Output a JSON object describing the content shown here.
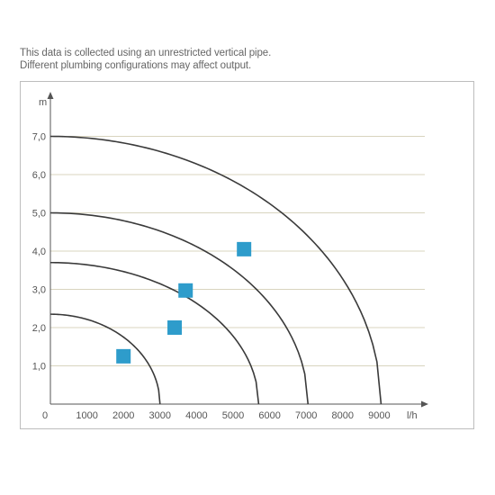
{
  "notes": [
    "This data is collected using an unrestricted vertical pipe.",
    "Different plumbing configurations may affect output."
  ],
  "colors": {
    "curve": "#3a3a3a",
    "grid": "#d8d4bf",
    "axis": "#555555",
    "marker": "#2e9ccb",
    "frame": "#bdbdbd"
  },
  "chart_data": {
    "type": "line",
    "title": "",
    "xlabel": "l/h",
    "ylabel": "m",
    "xlim": [
      0,
      10000
    ],
    "ylim": [
      0,
      7
    ],
    "x_ticks": [
      0,
      1000,
      2000,
      3000,
      4000,
      5000,
      6000,
      7000,
      8000,
      9000
    ],
    "x_tick_labels": [
      "0",
      "1000",
      "2000",
      "3000",
      "4000",
      "5000",
      "6000",
      "7000",
      "8000",
      "9000"
    ],
    "y_ticks": [
      1,
      2,
      3,
      4,
      5,
      6,
      7
    ],
    "y_tick_labels": [
      "1,0",
      "2,0",
      "3,0",
      "4,0",
      "5,0",
      "6,0",
      "7,0"
    ],
    "grid": "horizontal",
    "series": [
      {
        "max_head": 2.35,
        "max_flow": 3000,
        "marker": {
          "x": 2000,
          "y": 1.25
        }
      },
      {
        "max_head": 3.7,
        "max_flow": 5700,
        "marker": {
          "x": 3400,
          "y": 2.0
        }
      },
      {
        "max_head": 5.0,
        "max_flow": 7050,
        "marker": {
          "x": 3700,
          "y": 2.97
        }
      },
      {
        "max_head": 7.0,
        "max_flow": 9050,
        "marker": {
          "x": 5300,
          "y": 4.05
        }
      }
    ]
  }
}
